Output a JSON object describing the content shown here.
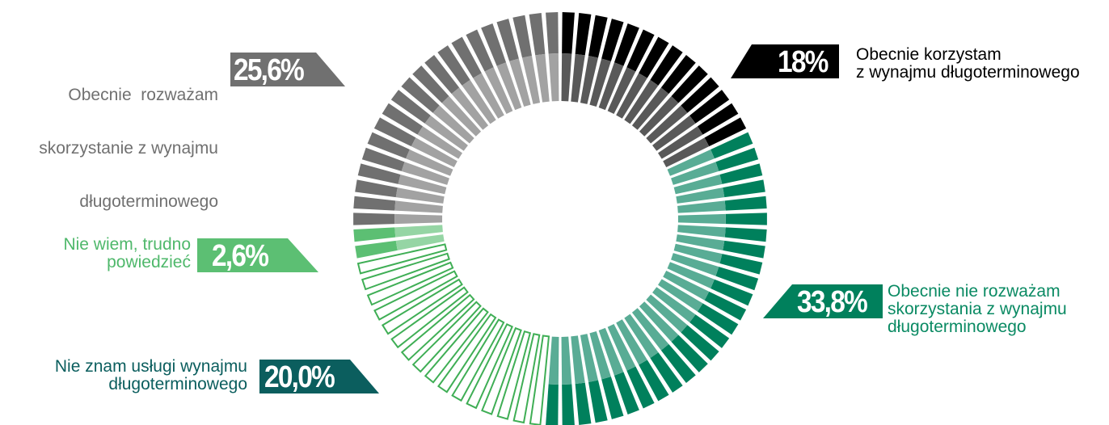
{
  "chart_data": {
    "type": "pie",
    "variant": "segmented-donut",
    "slices": [
      {
        "label": "Obecnie korzystam z wynajmu długoterminowego",
        "line1": "Obecnie korzystam",
        "line2": "z wynajmu długoterminowego",
        "value": 18,
        "value_label": "18%",
        "color": "#000000"
      },
      {
        "label": "Obecnie nie rozważam skorzystania z wynajmu długoterminowego",
        "line1": "Obecnie nie rozważam",
        "line2": "skorzystania z wynajmu",
        "line3": "długoterminowego",
        "value": 33.8,
        "value_label": "33,8%",
        "color": "#00805c"
      },
      {
        "label": "Nie znam usługi wynajmu długoterminowego",
        "line1": "Nie znam usługi wynajmu",
        "line2": "długoterminowego",
        "value": 20.0,
        "value_label": "20,0%",
        "color": "#0b5e5e"
      },
      {
        "label": "Nie wiem, trudno powiedzieć",
        "line1": "Nie wiem, trudno",
        "line2": "powiedzieć",
        "value": 2.6,
        "value_label": "2,6%",
        "color": "#5cbf73"
      },
      {
        "label": "Obecnie rozważam skorzystanie z wynajmu długoterminowego",
        "line1": "Obecnie  rozważam",
        "line2": "skorzystanie z wynajmu",
        "line3": "długoterminowego",
        "value": 25.6,
        "value_label": "25,6%",
        "color": "#707070"
      }
    ]
  }
}
